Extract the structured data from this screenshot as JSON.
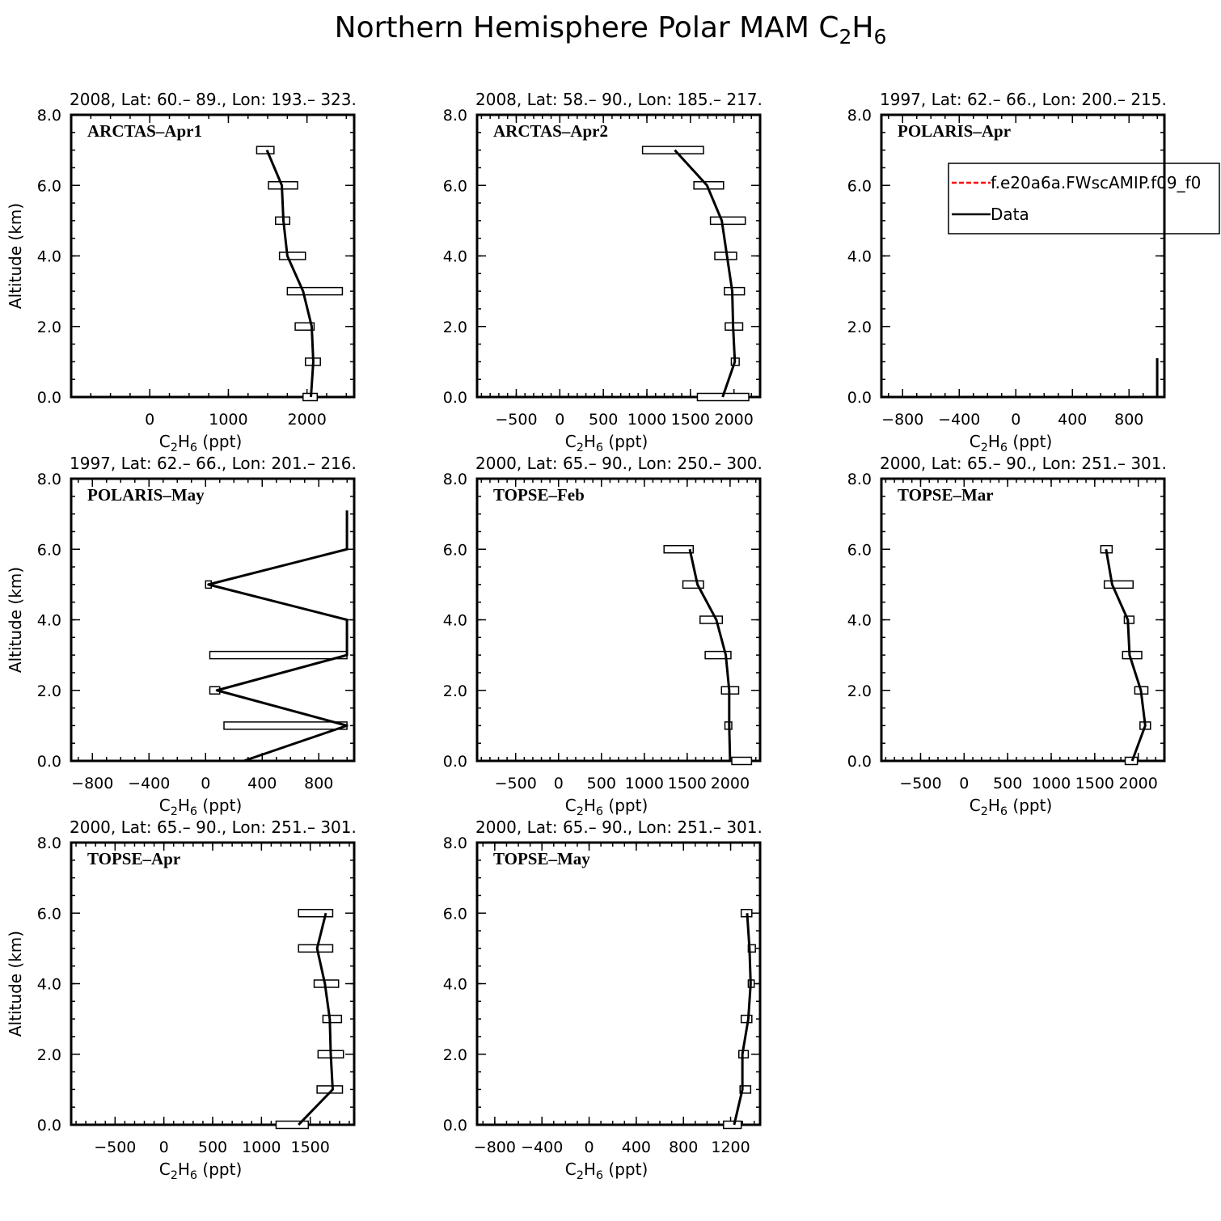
{
  "figure": {
    "title_prefix": "Northern Hemisphere Polar MAM C",
    "title_sub1": "2",
    "title_mid": "H",
    "title_sub2": "6",
    "ylabel": "Altitude (km)",
    "xlabel_prefix": "C",
    "xlabel_sub1": "2",
    "xlabel_mid": "H",
    "xlabel_sub2": "6",
    "xlabel_suffix": " (ppt)"
  },
  "legend": {
    "entries": [
      {
        "label": "f.e20a6a.FWscAMIP.f09_f0",
        "color": "#ff0000",
        "style": "dashed"
      },
      {
        "label": "Data",
        "color": "#000000",
        "style": "solid"
      }
    ]
  },
  "chart_data": [
    {
      "type": "line",
      "header": "2008, Lat:  60.– 89., Lon: 193.– 323.",
      "campaign": "ARCTAS–Apr1",
      "xlim": [
        -1000,
        2600
      ],
      "ylim": [
        0,
        8
      ],
      "xticks": [
        0,
        1000,
        2000
      ],
      "xminor": 250,
      "yticks": [
        0,
        2,
        4,
        6,
        8
      ],
      "yticklabels": [
        "0.0",
        "2.0",
        "4.0",
        "6.0",
        "8.0"
      ],
      "altitude": [
        0,
        1,
        2,
        3,
        4,
        5,
        6,
        7
      ],
      "data_line": [
        2050,
        2080,
        2060,
        1950,
        1750,
        1700,
        1680,
        1490
      ],
      "boxes": [
        {
          "y": 0,
          "x1": 1950,
          "x2": 2130
        },
        {
          "y": 1,
          "x1": 1980,
          "x2": 2170
        },
        {
          "y": 2,
          "x1": 1850,
          "x2": 2090
        },
        {
          "y": 3,
          "x1": 1750,
          "x2": 2450
        },
        {
          "y": 4,
          "x1": 1650,
          "x2": 1980
        },
        {
          "y": 5,
          "x1": 1600,
          "x2": 1780
        },
        {
          "y": 6,
          "x1": 1510,
          "x2": 1880
        },
        {
          "y": 7,
          "x1": 1360,
          "x2": 1580
        }
      ],
      "legend": false
    },
    {
      "type": "line",
      "header": "2008, Lat:  58.– 90., Lon: 185.– 217.",
      "campaign": "ARCTAS–Apr2",
      "xlim": [
        -950,
        2300
      ],
      "ylim": [
        0,
        8
      ],
      "xticks": [
        -500,
        0,
        500,
        1000,
        1500,
        2000
      ],
      "xminor": 100,
      "yticks": [
        0,
        2,
        4,
        6,
        8
      ],
      "yticklabels": [
        "0.0",
        "2.0",
        "4.0",
        "6.0",
        "8.0"
      ],
      "altitude": [
        0,
        1,
        2,
        3,
        4,
        5,
        6,
        7
      ],
      "data_line": [
        1870,
        2010,
        1990,
        1980,
        1920,
        1860,
        1690,
        1320
      ],
      "boxes": [
        {
          "y": 0,
          "x1": 1580,
          "x2": 2170
        },
        {
          "y": 1,
          "x1": 1970,
          "x2": 2060
        },
        {
          "y": 2,
          "x1": 1900,
          "x2": 2100
        },
        {
          "y": 3,
          "x1": 1890,
          "x2": 2120
        },
        {
          "y": 4,
          "x1": 1780,
          "x2": 2030
        },
        {
          "y": 5,
          "x1": 1730,
          "x2": 2130
        },
        {
          "y": 6,
          "x1": 1540,
          "x2": 1880
        },
        {
          "y": 7,
          "x1": 950,
          "x2": 1650
        }
      ],
      "legend": false
    },
    {
      "type": "line",
      "header": "1997, Lat: 62.– 66., Lon: 200.– 215.",
      "campaign": "POLARIS–Apr",
      "xlim": [
        -950,
        1050
      ],
      "ylim": [
        0,
        8
      ],
      "xticks": [
        -800,
        -400,
        0,
        400,
        800
      ],
      "xminor": 100,
      "yticks": [
        0,
        2,
        4,
        6,
        8
      ],
      "yticklabels": [
        "0.0",
        "2.0",
        "4.0",
        "6.0",
        "8.0"
      ],
      "altitude": [
        0,
        1.1
      ],
      "data_line": [
        999,
        999
      ],
      "boxes": [],
      "legend": true
    },
    {
      "type": "line",
      "header": "1997, Lat: 62.– 66., Lon: 201.– 216.",
      "campaign": "POLARIS–May",
      "xlim": [
        -950,
        1050
      ],
      "ylim": [
        0,
        8
      ],
      "xticks": [
        -800,
        -400,
        0,
        400,
        800
      ],
      "xminor": 100,
      "yticks": [
        0,
        2,
        4,
        6,
        8
      ],
      "yticklabels": [
        "0.0",
        "2.0",
        "4.0",
        "6.0",
        "8.0"
      ],
      "altitude": [
        0,
        1,
        2,
        3,
        4,
        5,
        6,
        7.1
      ],
      "data_line": [
        270,
        999,
        80,
        999,
        999,
        20,
        999,
        999
      ],
      "boxes": [
        {
          "y": 1,
          "x1": 130,
          "x2": 999
        },
        {
          "y": 2,
          "x1": 30,
          "x2": 100
        },
        {
          "y": 3,
          "x1": 30,
          "x2": 999
        },
        {
          "y": 5,
          "x1": 0,
          "x2": 40
        }
      ],
      "legend": false
    },
    {
      "type": "line",
      "header": "2000, Lat: 65.– 90., Lon: 250.– 300.",
      "campaign": "TOPSE–Feb",
      "xlim": [
        -950,
        2350
      ],
      "ylim": [
        0,
        8
      ],
      "xticks": [
        -500,
        0,
        500,
        1000,
        1500,
        2000
      ],
      "xminor": 100,
      "yticks": [
        0,
        2,
        4,
        6,
        8
      ],
      "yticklabels": [
        "0.0",
        "2.0",
        "4.0",
        "6.0",
        "8.0"
      ],
      "altitude": [
        0,
        1,
        2,
        3,
        4,
        5,
        6
      ],
      "data_line": [
        2000,
        1990,
        1990,
        1950,
        1840,
        1620,
        1530
      ],
      "boxes": [
        {
          "y": 0,
          "x1": 2020,
          "x2": 2250
        },
        {
          "y": 1,
          "x1": 1940,
          "x2": 2020
        },
        {
          "y": 2,
          "x1": 1900,
          "x2": 2100
        },
        {
          "y": 3,
          "x1": 1710,
          "x2": 2010
        },
        {
          "y": 4,
          "x1": 1650,
          "x2": 1910
        },
        {
          "y": 5,
          "x1": 1450,
          "x2": 1690
        },
        {
          "y": 6,
          "x1": 1230,
          "x2": 1570
        }
      ],
      "legend": false
    },
    {
      "type": "line",
      "header": "2000, Lat: 65.– 90., Lon: 251.– 301.",
      "campaign": "TOPSE–Mar",
      "xlim": [
        -950,
        2300
      ],
      "ylim": [
        0,
        8
      ],
      "xticks": [
        -500,
        0,
        500,
        1000,
        1500,
        2000
      ],
      "xminor": 100,
      "yticks": [
        0,
        2,
        4,
        6,
        8
      ],
      "yticklabels": [
        "0.0",
        "2.0",
        "4.0",
        "6.0",
        "8.0"
      ],
      "altitude": [
        0,
        1,
        2,
        3,
        4,
        5,
        6
      ],
      "data_line": [
        1930,
        2080,
        2030,
        1900,
        1880,
        1700,
        1630
      ],
      "boxes": [
        {
          "y": 0,
          "x1": 1850,
          "x2": 1990
        },
        {
          "y": 1,
          "x1": 2020,
          "x2": 2140
        },
        {
          "y": 2,
          "x1": 1960,
          "x2": 2110
        },
        {
          "y": 3,
          "x1": 1820,
          "x2": 2040
        },
        {
          "y": 4,
          "x1": 1840,
          "x2": 1950
        },
        {
          "y": 5,
          "x1": 1610,
          "x2": 1940
        },
        {
          "y": 6,
          "x1": 1570,
          "x2": 1700
        }
      ],
      "legend": false
    },
    {
      "type": "line",
      "header": "2000, Lat: 65.– 90., Lon: 251.– 301.",
      "campaign": "TOPSE–Apr",
      "xlim": [
        -950,
        1950
      ],
      "ylim": [
        0,
        8
      ],
      "xticks": [
        -500,
        0,
        500,
        1000,
        1500
      ],
      "xminor": 100,
      "yticks": [
        0,
        2,
        4,
        6,
        8
      ],
      "yticklabels": [
        "0.0",
        "2.0",
        "4.0",
        "6.0",
        "8.0"
      ],
      "altitude": [
        0,
        1,
        2,
        3,
        4,
        5,
        6
      ],
      "data_line": [
        1380,
        1730,
        1710,
        1700,
        1650,
        1570,
        1660
      ],
      "boxes": [
        {
          "y": 0,
          "x1": 1150,
          "x2": 1480
        },
        {
          "y": 1,
          "x1": 1570,
          "x2": 1830
        },
        {
          "y": 2,
          "x1": 1580,
          "x2": 1840
        },
        {
          "y": 3,
          "x1": 1630,
          "x2": 1820
        },
        {
          "y": 4,
          "x1": 1540,
          "x2": 1790
        },
        {
          "y": 5,
          "x1": 1380,
          "x2": 1730
        },
        {
          "y": 6,
          "x1": 1380,
          "x2": 1730
        }
      ],
      "legend": false
    },
    {
      "type": "line",
      "header": "2000, Lat: 65.– 90., Lon: 251.– 301.",
      "campaign": "TOPSE–May",
      "xlim": [
        -950,
        1450
      ],
      "ylim": [
        0,
        8
      ],
      "xticks": [
        -800,
        -400,
        0,
        400,
        800,
        1200
      ],
      "xminor": 100,
      "yticks": [
        0,
        2,
        4,
        6,
        8
      ],
      "yticklabels": [
        "0.0",
        "2.0",
        "4.0",
        "6.0",
        "8.0"
      ],
      "altitude": [
        0,
        1,
        2,
        3,
        4,
        5,
        6
      ],
      "data_line": [
        1230,
        1300,
        1300,
        1350,
        1370,
        1360,
        1340
      ],
      "boxes": [
        {
          "y": 0,
          "x1": 1140,
          "x2": 1290
        },
        {
          "y": 1,
          "x1": 1280,
          "x2": 1370
        },
        {
          "y": 2,
          "x1": 1270,
          "x2": 1350
        },
        {
          "y": 3,
          "x1": 1290,
          "x2": 1380
        },
        {
          "y": 4,
          "x1": 1350,
          "x2": 1400
        },
        {
          "y": 5,
          "x1": 1350,
          "x2": 1410
        },
        {
          "y": 6,
          "x1": 1290,
          "x2": 1380
        }
      ],
      "legend": false
    }
  ]
}
